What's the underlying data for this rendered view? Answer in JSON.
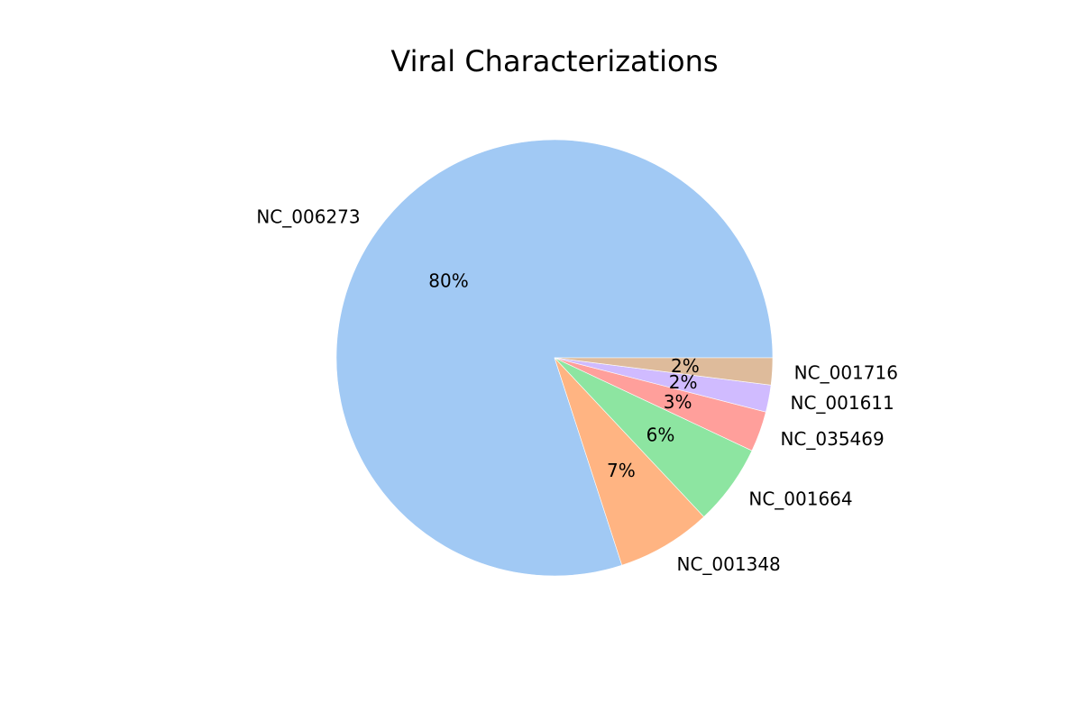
{
  "chart_data": {
    "type": "pie",
    "title": "Viral Characterizations",
    "categories": [
      "NC_006273",
      "NC_001348",
      "NC_001664",
      "NC_035469",
      "NC_001611",
      "NC_001716"
    ],
    "values": [
      80,
      7,
      6,
      3,
      2,
      2
    ],
    "value_labels": [
      "80%",
      "7%",
      "6%",
      "3%",
      "2%",
      "2%"
    ],
    "colors": [
      "#a1c9f4",
      "#ffb482",
      "#8de5a1",
      "#ff9f9b",
      "#d0bbff",
      "#debb9b"
    ],
    "start_angle_deg": 0,
    "direction": "counterclockwise",
    "legend": "none"
  }
}
